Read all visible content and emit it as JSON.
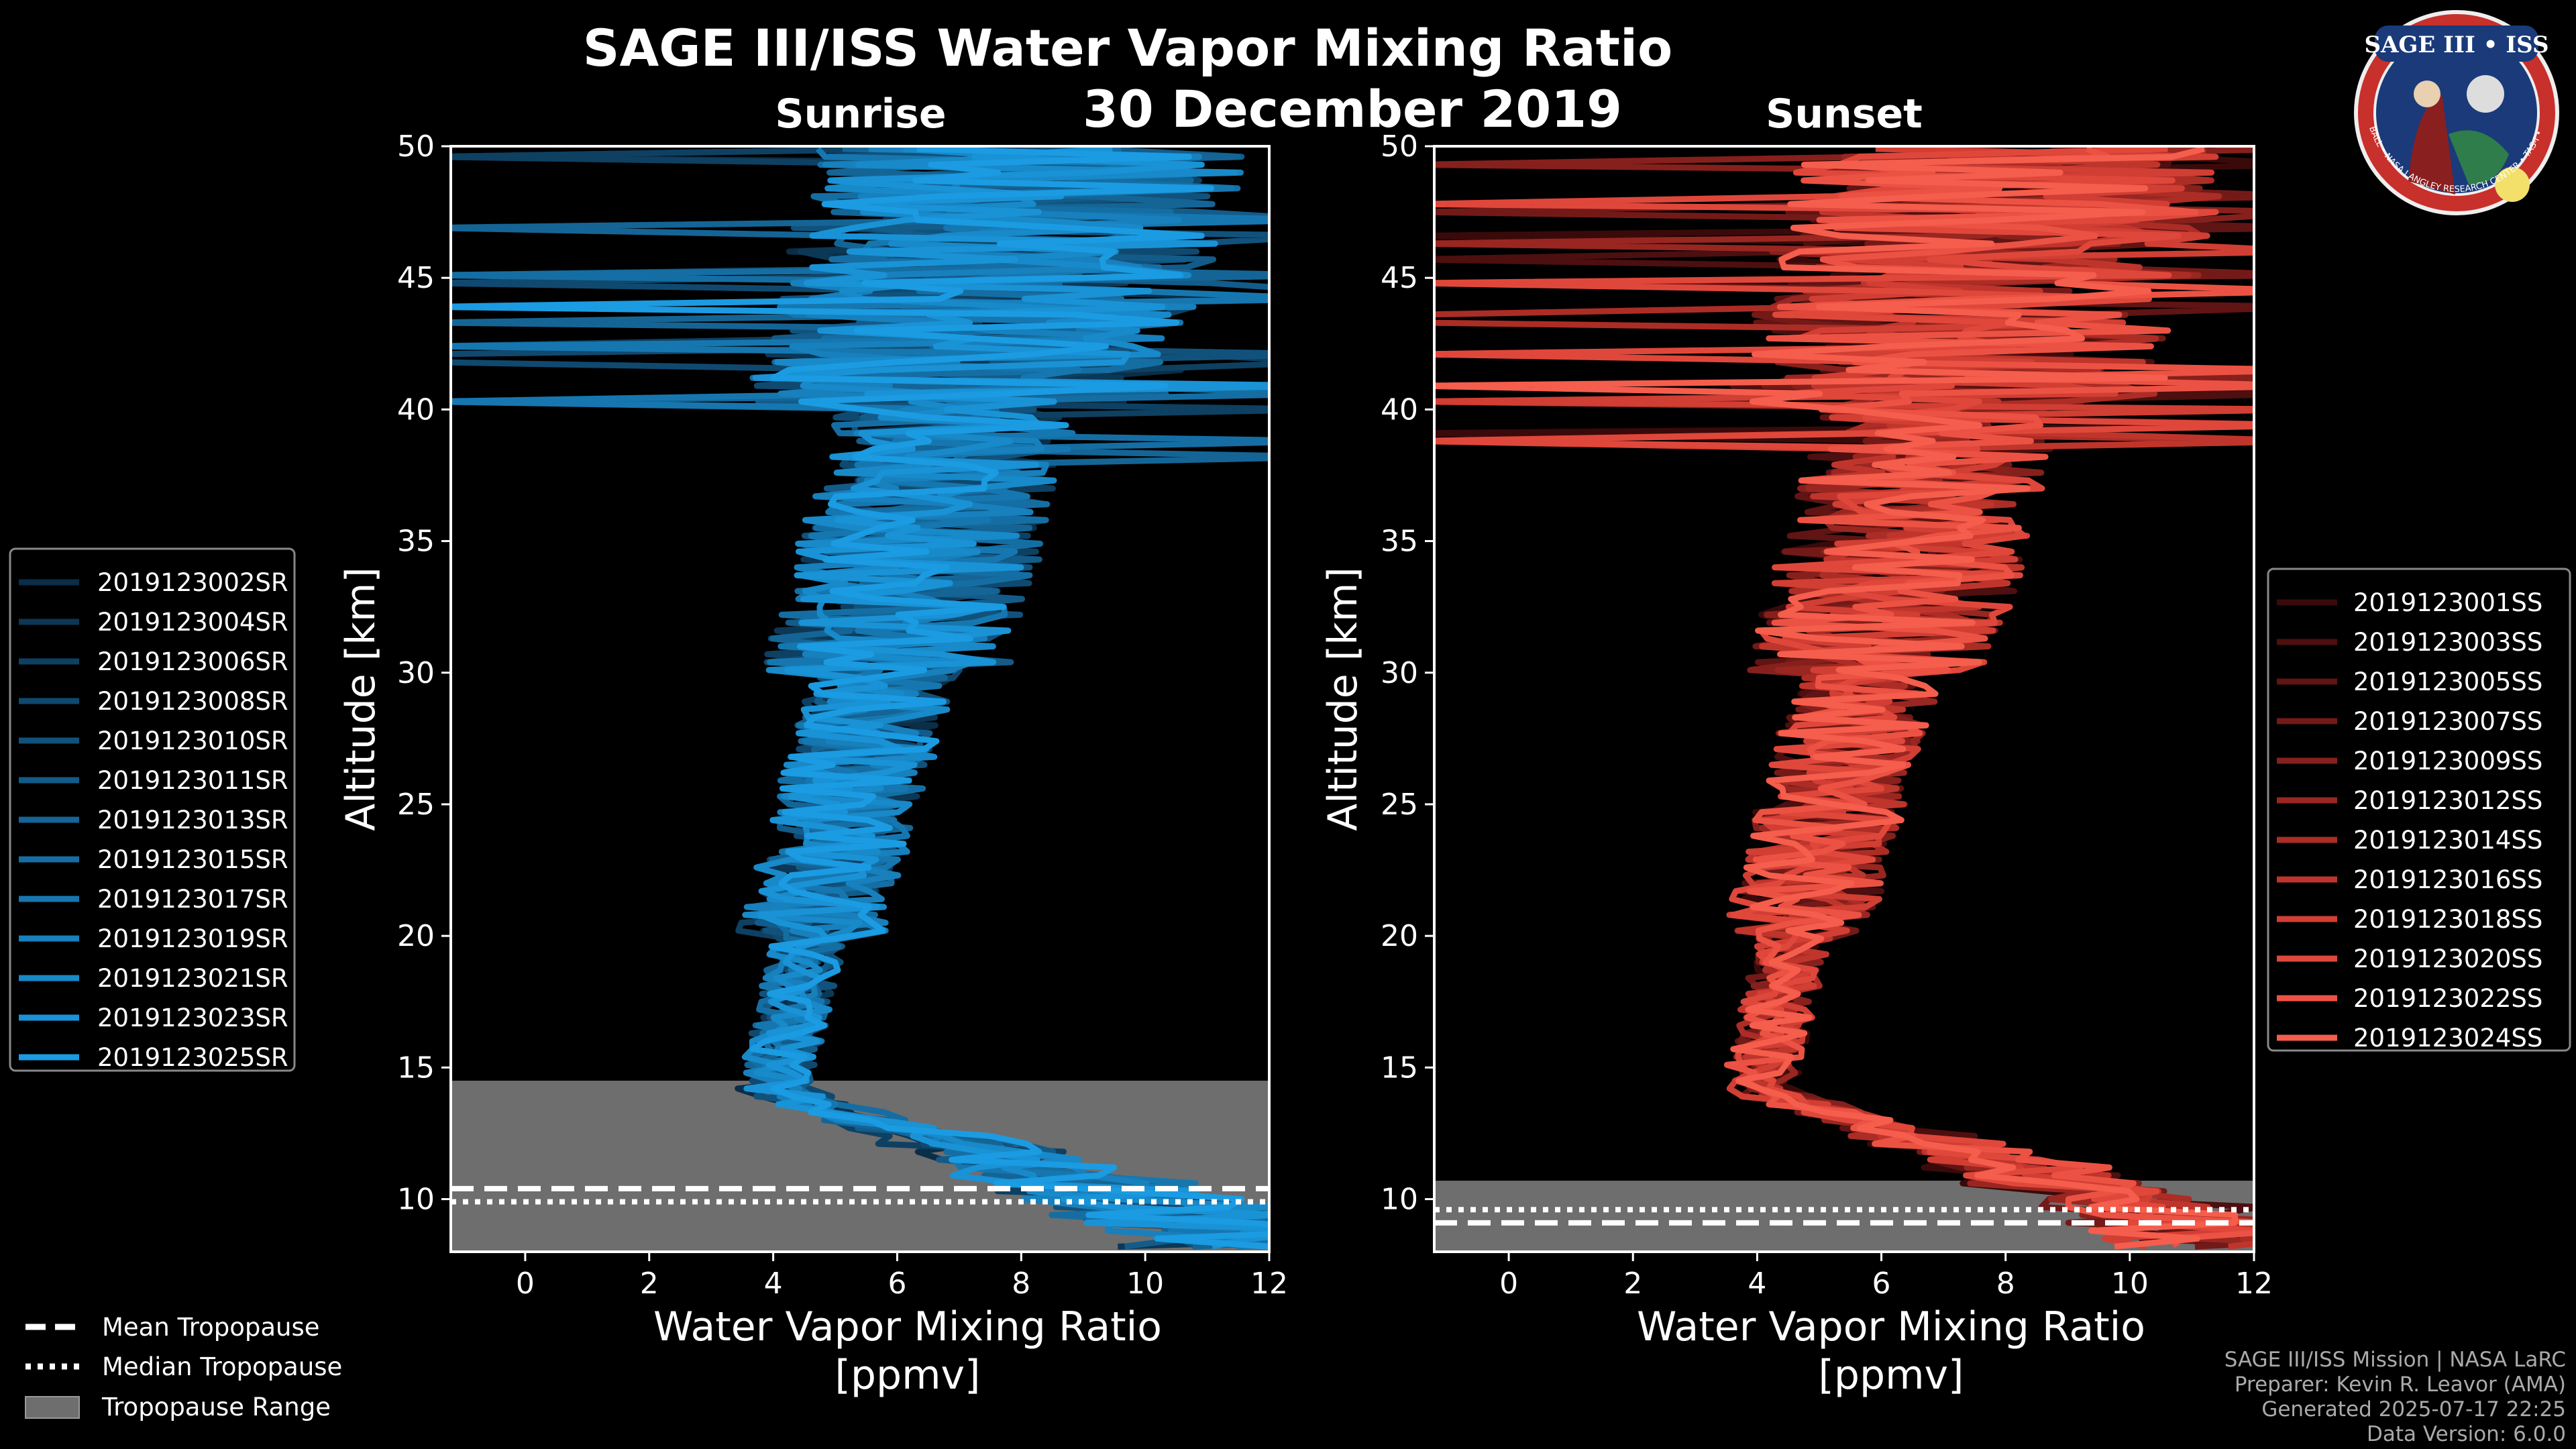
{
  "title": "SAGE III/ISS Water Vapor Mixing Ratio",
  "date": "30 December 2019",
  "colors": {
    "sunrise": "#1a8fd6",
    "sunset": "#f05a4a",
    "range": "#6e6e6e",
    "background": "#000000"
  },
  "chart_data": [
    {
      "type": "line",
      "panel": "Sunrise",
      "title": "Sunrise",
      "xlabel": "Water Vapor Mixing Ratio",
      "xlabel_unit": "[ppmv]",
      "ylabel": "Altitude [km]",
      "xlim": [
        -1.2,
        12
      ],
      "ylim": [
        8,
        50
      ],
      "xticks": [
        0,
        2,
        4,
        6,
        8,
        10,
        12
      ],
      "yticks": [
        10,
        15,
        20,
        25,
        30,
        35,
        40,
        45,
        50
      ],
      "tropopause_mean": 10.4,
      "tropopause_median": 9.9,
      "tropopause_range": [
        8,
        14.5
      ],
      "series": [
        {
          "name": "2019123002SR",
          "color": "#0a2e48"
        },
        {
          "name": "2019123004SR",
          "color": "#0c3755"
        },
        {
          "name": "2019123006SR",
          "color": "#0e4062"
        },
        {
          "name": "2019123008SR",
          "color": "#10496f"
        },
        {
          "name": "2019123010SR",
          "color": "#11527c"
        },
        {
          "name": "2019123011SR",
          "color": "#135b89"
        },
        {
          "name": "2019123013SR",
          "color": "#146596"
        },
        {
          "name": "2019123015SR",
          "color": "#156ea3"
        },
        {
          "name": "2019123017SR",
          "color": "#1677b0"
        },
        {
          "name": "2019123019SR",
          "color": "#1780bd"
        },
        {
          "name": "2019123021SR",
          "color": "#1889c9"
        },
        {
          "name": "2019123023SR",
          "color": "#1a92d6"
        },
        {
          "name": "2019123025SR",
          "color": "#1b9be2"
        }
      ]
    },
    {
      "type": "line",
      "panel": "Sunset",
      "title": "Sunset",
      "xlabel": "Water Vapor Mixing Ratio",
      "xlabel_unit": "[ppmv]",
      "ylabel": "Altitude [km]",
      "xlim": [
        -1.2,
        12
      ],
      "ylim": [
        8,
        50
      ],
      "xticks": [
        0,
        2,
        4,
        6,
        8,
        10,
        12
      ],
      "yticks": [
        10,
        15,
        20,
        25,
        30,
        35,
        40,
        45,
        50
      ],
      "tropopause_mean": 9.1,
      "tropopause_median": 9.6,
      "tropopause_range": [
        8,
        10.7
      ],
      "series": [
        {
          "name": "2019123001SS",
          "color": "#3a0a0a"
        },
        {
          "name": "2019123003SS",
          "color": "#4d0f0f"
        },
        {
          "name": "2019123005SS",
          "color": "#601414"
        },
        {
          "name": "2019123007SS",
          "color": "#731a18"
        },
        {
          "name": "2019123009SS",
          "color": "#86201c"
        },
        {
          "name": "2019123012SS",
          "color": "#992621"
        },
        {
          "name": "2019123014SS",
          "color": "#ac2d26"
        },
        {
          "name": "2019123016SS",
          "color": "#bf352c"
        },
        {
          "name": "2019123018SS",
          "color": "#d13e33"
        },
        {
          "name": "2019123020SS",
          "color": "#e0473b"
        },
        {
          "name": "2019123022SS",
          "color": "#ec5243"
        },
        {
          "name": "2019123024SS",
          "color": "#f55d4c"
        }
      ]
    }
  ],
  "legend_tropopause": {
    "mean": "Mean Tropopause",
    "median": "Median Tropopause",
    "range": "Tropopause Range"
  },
  "badge": {
    "title": "SAGE III • ISS",
    "ring": "BALL • NASA LANGLEY RESEARCH CENTER • TAS-I • ESA"
  },
  "credits": [
    "SAGE III/ISS Mission | NASA LaRC",
    "Preparer: Kevin R. Leavor (AMA)",
    "Generated 2025-07-17 22:25",
    "Data Version: 6.0.0"
  ]
}
